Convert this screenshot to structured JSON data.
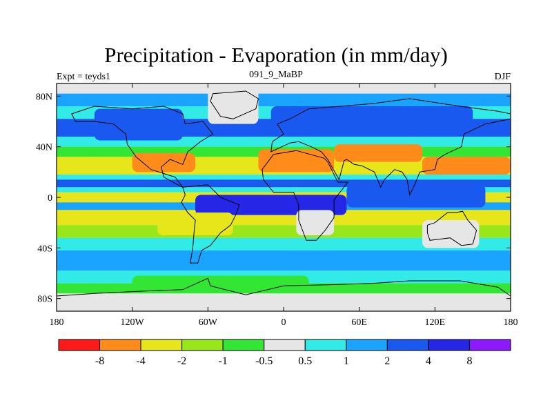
{
  "chart_data": {
    "type": "heatmap",
    "title": "Precipitation - Evaporation (in mm/day)",
    "left_string": "Expt = teyds1",
    "center_string": "091_9_MaBP",
    "right_string": "DJF",
    "x_range": [
      -180,
      180
    ],
    "y_range": [
      -90,
      90
    ],
    "x_ticks": [
      {
        "value": -180,
        "label": "180"
      },
      {
        "value": -120,
        "label": "120W"
      },
      {
        "value": -60,
        "label": "60W"
      },
      {
        "value": 0,
        "label": "0"
      },
      {
        "value": 60,
        "label": "60E"
      },
      {
        "value": 120,
        "label": "120E"
      },
      {
        "value": 180,
        "label": "180"
      }
    ],
    "y_ticks": [
      {
        "value": 80,
        "label": "80N"
      },
      {
        "value": 40,
        "label": "40N"
      },
      {
        "value": 0,
        "label": "0"
      },
      {
        "value": -40,
        "label": "40S"
      },
      {
        "value": -80,
        "label": "80S"
      }
    ],
    "colorbar": {
      "colors": [
        "#ff1a1a",
        "#ff8c1a",
        "#e6e61a",
        "#99e61a",
        "#33e633",
        "#e6e6e6",
        "#33ebe6",
        "#1aa3ff",
        "#1a59f0",
        "#2626e6",
        "#8c1aff"
      ],
      "labels": [
        "-8",
        "-4",
        "-2",
        "-1",
        "-0.5",
        "0.5",
        "1",
        "2",
        "4",
        "8"
      ]
    },
    "zonal_bands": [
      {
        "lat_max": 90,
        "lat_min": 82,
        "level": 5
      },
      {
        "lat_max": 82,
        "lat_min": 72,
        "level": 7
      },
      {
        "lat_max": 72,
        "lat_min": 62,
        "level": 6
      },
      {
        "lat_max": 62,
        "lat_min": 48,
        "level": 8
      },
      {
        "lat_max": 48,
        "lat_min": 40,
        "level": 6
      },
      {
        "lat_max": 40,
        "lat_min": 32,
        "level": 4
      },
      {
        "lat_max": 32,
        "lat_min": 18,
        "level": 2
      },
      {
        "lat_max": 18,
        "lat_min": 14,
        "level": 6
      },
      {
        "lat_max": 14,
        "lat_min": 8,
        "level": 8
      },
      {
        "lat_max": 8,
        "lat_min": 4,
        "level": 6
      },
      {
        "lat_max": 4,
        "lat_min": -4,
        "level": 2
      },
      {
        "lat_max": -4,
        "lat_min": -10,
        "level": 7
      },
      {
        "lat_max": -10,
        "lat_min": -22,
        "level": 2
      },
      {
        "lat_max": -22,
        "lat_min": -32,
        "level": 3
      },
      {
        "lat_max": -32,
        "lat_min": -42,
        "level": 6
      },
      {
        "lat_max": -42,
        "lat_min": -58,
        "level": 7
      },
      {
        "lat_max": -58,
        "lat_min": -68,
        "level": 6
      },
      {
        "lat_max": -68,
        "lat_min": -76,
        "level": 4
      },
      {
        "lat_max": -76,
        "lat_min": -90,
        "level": 5
      }
    ],
    "regions": [
      {
        "name": "n-america-wet-north",
        "lon": [
          -150,
          -80
        ],
        "lat": [
          70,
          45
        ],
        "level": 8
      },
      {
        "name": "n-america-dry",
        "lon": [
          -120,
          -70
        ],
        "lat": [
          35,
          20
        ],
        "level": 1
      },
      {
        "name": "greenland-neutral",
        "lon": [
          -60,
          -20
        ],
        "lat": [
          88,
          58
        ],
        "level": 5
      },
      {
        "name": "eurasia-wet",
        "lon": [
          -10,
          150
        ],
        "lat": [
          72,
          50
        ],
        "level": 8
      },
      {
        "name": "n-africa-dry",
        "lon": [
          -20,
          40
        ],
        "lat": [
          38,
          20
        ],
        "level": 1
      },
      {
        "name": "asia-dry-band",
        "lon": [
          40,
          110
        ],
        "lat": [
          42,
          28
        ],
        "level": 1
      },
      {
        "name": "pacific-dry-east",
        "lon": [
          110,
          180
        ],
        "lat": [
          32,
          18
        ],
        "level": 1
      },
      {
        "name": "tropical-wet-atlantic",
        "lon": [
          -70,
          50
        ],
        "lat": [
          2,
          -14
        ],
        "level": 9
      },
      {
        "name": "indo-pacific-wet",
        "lon": [
          50,
          160
        ],
        "lat": [
          10,
          -8
        ],
        "level": 8
      },
      {
        "name": "s-america-dry",
        "lon": [
          -100,
          -40
        ],
        "lat": [
          -12,
          -30
        ],
        "level": 2
      },
      {
        "name": "africa-south-neutral",
        "lon": [
          10,
          40
        ],
        "lat": [
          -10,
          -30
        ],
        "level": 5
      },
      {
        "name": "australia-neutral",
        "lon": [
          110,
          155
        ],
        "lat": [
          -18,
          -40
        ],
        "level": 5
      },
      {
        "name": "southern-ocean-green",
        "lon": [
          -120,
          20
        ],
        "lat": [
          -62,
          -72
        ],
        "level": 4
      },
      {
        "name": "antarctic-neutral",
        "lon": [
          -180,
          180
        ],
        "lat": [
          -80,
          -90
        ],
        "level": 5
      }
    ]
  }
}
